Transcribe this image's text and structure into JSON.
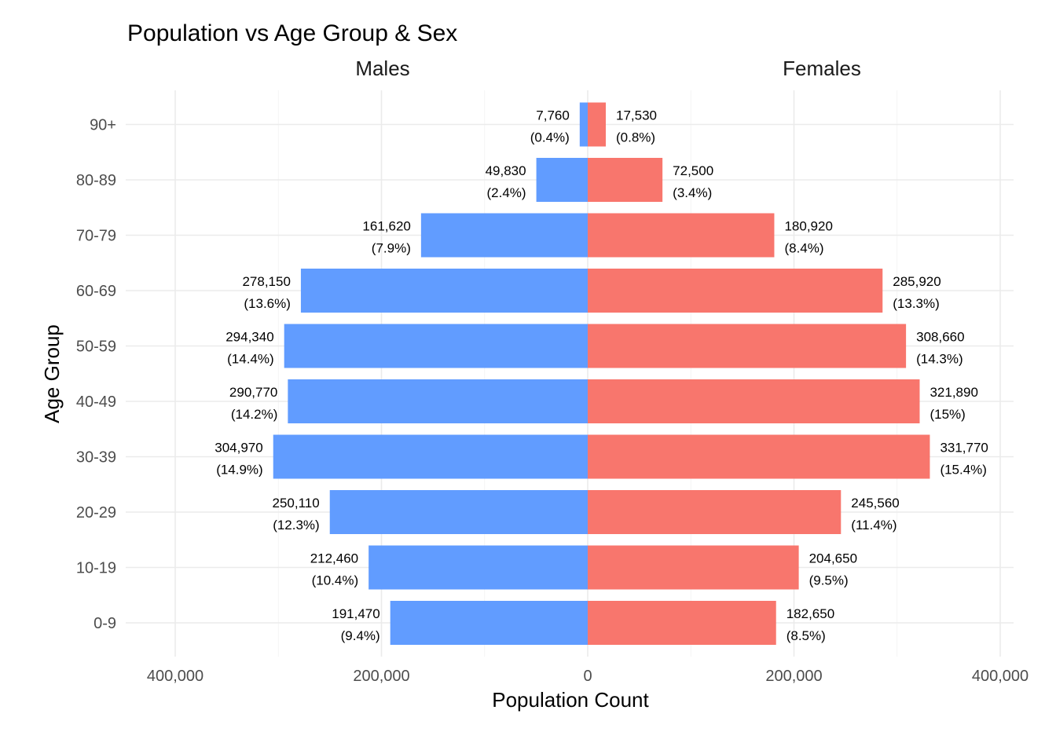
{
  "chart_data": {
    "type": "bar",
    "orientation": "horizontal",
    "layout": "population-pyramid",
    "title": "Population vs Age Group & Sex",
    "xlabel": "Population Count",
    "ylabel": "Age Group",
    "xlim": [
      -420000,
      420000
    ],
    "x_ticks": [
      -400000,
      -200000,
      0,
      200000,
      400000
    ],
    "x_tick_labels": [
      "400,000",
      "200,000",
      "0",
      "200,000",
      "400,000"
    ],
    "grid": true,
    "legend": "none",
    "categories": [
      "0-9",
      "10-19",
      "20-29",
      "30-39",
      "40-49",
      "50-59",
      "60-69",
      "70-79",
      "80-89",
      "90+"
    ],
    "series": [
      {
        "name": "Males",
        "color": "#619CFF",
        "values": [
          191470,
          212460,
          250110,
          304970,
          290770,
          294340,
          278150,
          161620,
          49830,
          7760
        ],
        "labels": [
          "191,470",
          "212,460",
          "250,110",
          "304,970",
          "290,770",
          "294,340",
          "278,150",
          "161,620",
          "49,830",
          "7,760"
        ],
        "pct_labels": [
          "(9.4%)",
          "(10.4%)",
          "(12.3%)",
          "(14.9%)",
          "(14.2%)",
          "(14.4%)",
          "(13.6%)",
          "(7.9%)",
          "(2.4%)",
          "(0.4%)"
        ]
      },
      {
        "name": "Females",
        "color": "#F8766D",
        "values": [
          182650,
          204650,
          245560,
          331770,
          321890,
          308660,
          285920,
          180920,
          72500,
          17530
        ],
        "labels": [
          "182,650",
          "204,650",
          "245,560",
          "331,770",
          "321,890",
          "308,660",
          "285,920",
          "180,920",
          "72,500",
          "17,530"
        ],
        "pct_labels": [
          "(8.5%)",
          "(9.5%)",
          "(11.4%)",
          "(15.4%)",
          "(15%)",
          "(14.3%)",
          "(13.3%)",
          "(8.4%)",
          "(3.4%)",
          "(0.8%)"
        ]
      }
    ]
  }
}
